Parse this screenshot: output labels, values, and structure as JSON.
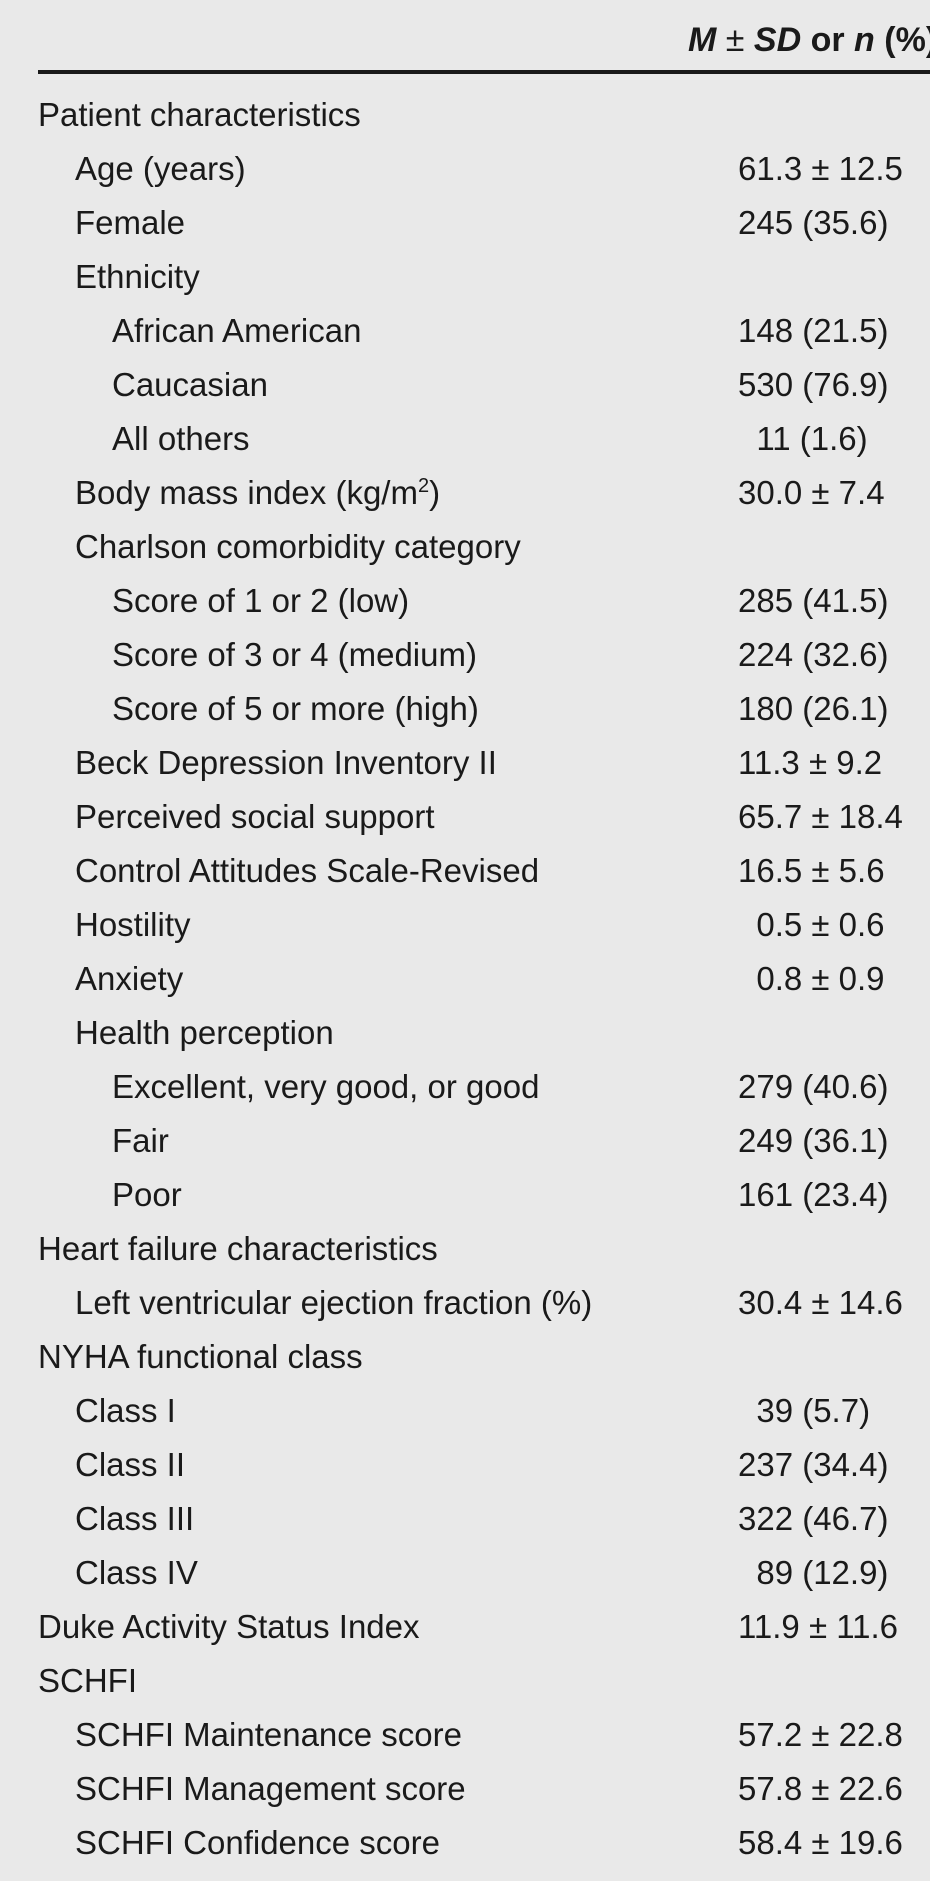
{
  "header": {
    "m": "M",
    "pm": " ± ",
    "sd": "SD",
    "or": " or ",
    "n": "n",
    "pct": " (%)"
  },
  "rows": [
    {
      "label": "Patient characteristics",
      "level": 0,
      "value": ""
    },
    {
      "label": "Age (years)",
      "level": 1,
      "value": "61.3 ± 12.5"
    },
    {
      "label": "Female",
      "level": 1,
      "value": "245 (35.6)"
    },
    {
      "label": "Ethnicity",
      "level": 1,
      "value": ""
    },
    {
      "label": "African American",
      "level": 2,
      "value": "148 (21.5)"
    },
    {
      "label": "Caucasian",
      "level": 2,
      "value": "530 (76.9)"
    },
    {
      "label": "All others",
      "level": 2,
      "value": "  11 (1.6)"
    },
    {
      "label": "Body mass index (kg/m",
      "sup": "2",
      "label_suffix": ")",
      "level": 1,
      "value": "30.0 ± 7.4"
    },
    {
      "label": "Charlson comorbidity category",
      "level": 1,
      "value": ""
    },
    {
      "label": "Score of 1 or 2 (low)",
      "level": 2,
      "value": "285 (41.5)"
    },
    {
      "label": "Score of 3 or 4 (medium)",
      "level": 2,
      "value": "224 (32.6)"
    },
    {
      "label": "Score of 5 or more (high)",
      "level": 2,
      "value": "180 (26.1)"
    },
    {
      "label": "Beck Depression Inventory II",
      "level": 1,
      "value": "11.3 ± 9.2"
    },
    {
      "label": "Perceived social support",
      "level": 1,
      "value": "65.7 ± 18.4"
    },
    {
      "label": "Control Attitudes Scale-Revised",
      "level": 1,
      "value": "16.5 ± 5.6"
    },
    {
      "label": "Hostility",
      "level": 1,
      "value": "  0.5 ± 0.6"
    },
    {
      "label": "Anxiety",
      "level": 1,
      "value": "  0.8 ± 0.9"
    },
    {
      "label": "Health perception",
      "level": 1,
      "value": ""
    },
    {
      "label": "Excellent, very good, or good",
      "level": 2,
      "value": "279 (40.6)"
    },
    {
      "label": "Fair",
      "level": 2,
      "value": "249 (36.1)"
    },
    {
      "label": "Poor",
      "level": 2,
      "value": "161 (23.4)"
    },
    {
      "label": "Heart failure characteristics",
      "level": 0,
      "value": ""
    },
    {
      "label": "Left ventricular ejection fraction (%)",
      "level": 1,
      "value": "30.4 ± 14.6"
    },
    {
      "label": "NYHA functional class",
      "level": 0,
      "value": ""
    },
    {
      "label": "Class I",
      "level": 1,
      "value": "  39 (5.7)"
    },
    {
      "label": "Class II",
      "level": 1,
      "value": "237 (34.4)"
    },
    {
      "label": "Class III",
      "level": 1,
      "value": "322 (46.7)"
    },
    {
      "label": "Class IV",
      "level": 1,
      "value": "  89 (12.9)"
    },
    {
      "label": "Duke Activity Status Index",
      "level": 0,
      "value": "11.9 ± 11.6"
    },
    {
      "label": "SCHFI",
      "level": 0,
      "value": ""
    },
    {
      "label": "SCHFI Maintenance score",
      "level": 1,
      "value": "57.2 ± 22.8"
    },
    {
      "label": "SCHFI Management score",
      "level": 1,
      "value": "57.8 ± 22.6"
    },
    {
      "label": "SCHFI Confidence score",
      "level": 1,
      "value": "58.4 ± 19.6"
    }
  ]
}
